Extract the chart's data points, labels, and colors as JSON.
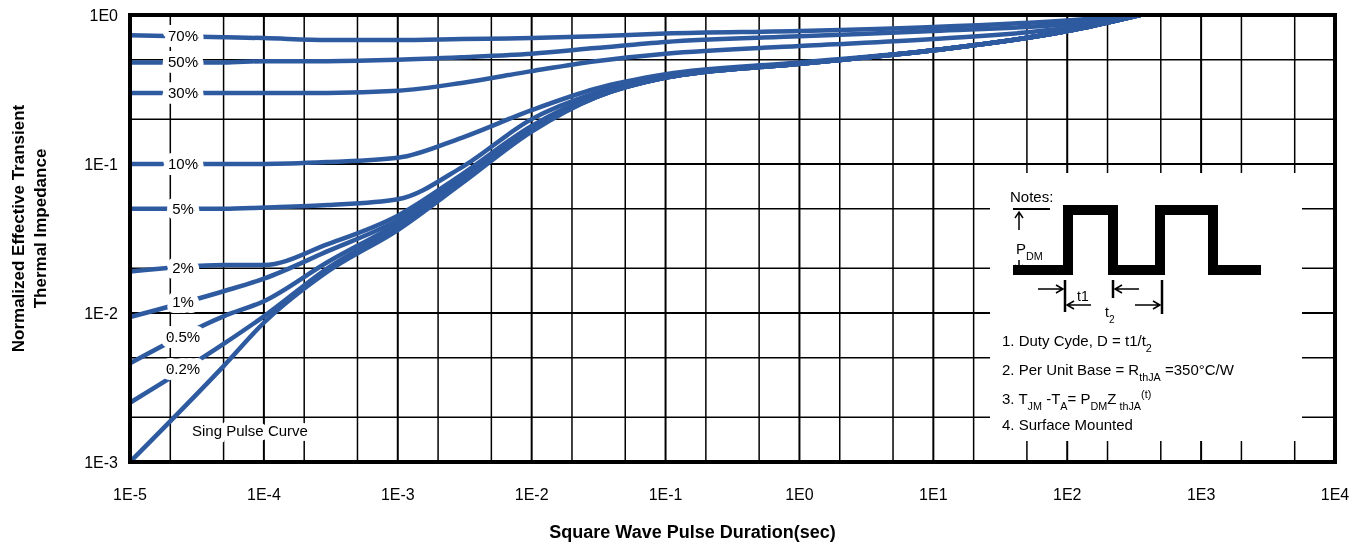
{
  "chart_data": {
    "type": "line",
    "xlabel": "Square Wave Pulse Duration(sec)",
    "ylabel": "Normalized Effective Transient\nThermal Impedance",
    "log": "xy",
    "grid": true,
    "xlim": [
      1e-05,
      10000
    ],
    "ylim": [
      0.001,
      1
    ],
    "xticks": [
      {
        "value": 1e-05,
        "label": "1E-5"
      },
      {
        "value": 2e-05,
        "label": null
      },
      {
        "value": 5e-05,
        "label": null
      },
      {
        "value": 0.0001,
        "label": "1E-4"
      },
      {
        "value": 0.0002,
        "label": null
      },
      {
        "value": 0.0005,
        "label": null
      },
      {
        "value": 0.001,
        "label": "1E-3"
      },
      {
        "value": 0.002,
        "label": null
      },
      {
        "value": 0.005,
        "label": null
      },
      {
        "value": 0.01,
        "label": "1E-2"
      },
      {
        "value": 0.02,
        "label": null
      },
      {
        "value": 0.05,
        "label": null
      },
      {
        "value": 0.1,
        "label": "1E-1"
      },
      {
        "value": 0.2,
        "label": null
      },
      {
        "value": 0.5,
        "label": null
      },
      {
        "value": 1,
        "label": "1E0"
      },
      {
        "value": 2,
        "label": null
      },
      {
        "value": 5,
        "label": null
      },
      {
        "value": 10,
        "label": "1E1"
      },
      {
        "value": 20,
        "label": null
      },
      {
        "value": 50,
        "label": null
      },
      {
        "value": 100,
        "label": "1E2"
      },
      {
        "value": 200,
        "label": null
      },
      {
        "value": 500,
        "label": null
      },
      {
        "value": 1000,
        "label": "1E3"
      },
      {
        "value": 2000,
        "label": null
      },
      {
        "value": 5000,
        "label": null
      },
      {
        "value": 10000,
        "label": "1E4"
      }
    ],
    "yticks": [
      {
        "value": 0.001,
        "label": "1E-3"
      },
      {
        "value": 0.002,
        "label": null
      },
      {
        "value": 0.005,
        "label": null
      },
      {
        "value": 0.01,
        "label": "1E-2"
      },
      {
        "value": 0.02,
        "label": null
      },
      {
        "value": 0.05,
        "label": null
      },
      {
        "value": 0.1,
        "label": "1E-1"
      },
      {
        "value": 0.2,
        "label": null
      },
      {
        "value": 0.5,
        "label": null
      },
      {
        "value": 1,
        "label": "1E0"
      }
    ],
    "x": [
      1e-05,
      5e-05,
      0.0001,
      0.0003,
      0.001,
      0.003,
      0.01,
      0.03,
      0.1,
      1,
      10,
      100,
      350
    ],
    "series": [
      {
        "name": "70%",
        "color": "#2e5aa0",
        "values": [
          0.73,
          0.71,
          0.7,
          0.68,
          0.68,
          0.69,
          0.7,
          0.72,
          0.75,
          0.78,
          0.83,
          0.92,
          1
        ]
      },
      {
        "name": "50%",
        "color": "#2e5aa0",
        "values": [
          0.48,
          0.48,
          0.49,
          0.49,
          0.5,
          0.52,
          0.55,
          0.6,
          0.66,
          0.72,
          0.78,
          0.87,
          1
        ]
      },
      {
        "name": "30%",
        "color": "#2e5aa0",
        "values": [
          0.3,
          0.3,
          0.3,
          0.3,
          0.31,
          0.35,
          0.42,
          0.49,
          0.55,
          0.62,
          0.69,
          0.82,
          1
        ]
      },
      {
        "name": "10%",
        "color": "#2e5aa0",
        "values": [
          0.1,
          0.1,
          0.1,
          0.103,
          0.11,
          0.15,
          0.23,
          0.32,
          0.4,
          0.48,
          0.58,
          0.78,
          1
        ]
      },
      {
        "name": "5%",
        "color": "#2e5aa0",
        "values": [
          0.05,
          0.05,
          0.051,
          0.053,
          0.058,
          0.095,
          0.2,
          0.3,
          0.39,
          0.47,
          0.58,
          0.78,
          1
        ]
      },
      {
        "name": "2%",
        "color": "#2e5aa0",
        "values": [
          0.019,
          0.021,
          0.021,
          0.029,
          0.045,
          0.085,
          0.18,
          0.29,
          0.38,
          0.47,
          0.58,
          0.78,
          1
        ]
      },
      {
        "name": "1%",
        "color": "#2e5aa0",
        "values": [
          0.0094,
          0.014,
          0.017,
          0.026,
          0.042,
          0.08,
          0.175,
          0.285,
          0.38,
          0.47,
          0.58,
          0.78,
          1
        ]
      },
      {
        "name": "0.5%",
        "color": "#2e5aa0",
        "values": [
          0.0046,
          0.0095,
          0.012,
          0.022,
          0.04,
          0.078,
          0.17,
          0.28,
          0.38,
          0.47,
          0.58,
          0.78,
          1
        ]
      },
      {
        "name": "0.2%",
        "color": "#2e5aa0",
        "values": [
          0.0025,
          0.0062,
          0.0095,
          0.02,
          0.038,
          0.076,
          0.17,
          0.28,
          0.38,
          0.47,
          0.58,
          0.78,
          1
        ]
      },
      {
        "name": "Sing Pulse Curve",
        "color": "#2e5aa0",
        "values": [
          0.001,
          0.0044,
          0.0086,
          0.019,
          0.036,
          0.074,
          0.165,
          0.28,
          0.38,
          0.47,
          0.58,
          0.78,
          1
        ]
      }
    ],
    "annotations": [
      "Notes:",
      "P$_{DM}$",
      "t1",
      "t$_{2}$",
      "1. Duty Cyde, D = t1/t$_{2}$",
      "2. Per Unit Base = R$_{thJA}$ =350°C/W",
      "3. T$_{JM}$ -T$_{A}$= P$_{DM}$Z$_{ thJA}$$^{(t)}$",
      "4. Surface Mounted"
    ]
  }
}
